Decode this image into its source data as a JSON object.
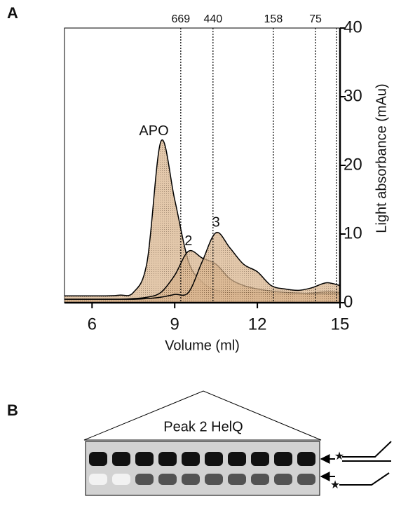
{
  "panel_labels": [
    "A",
    "B"
  ],
  "chart_data": {
    "type": "line",
    "x_label": "Volume (ml)",
    "y_label": "Light absorbance (mAu)",
    "xlim": [
      5,
      15
    ],
    "xticks": [
      6,
      9,
      12,
      15
    ],
    "ylim": [
      0,
      40
    ],
    "yticks": [
      0,
      10,
      20,
      30,
      40
    ],
    "markers": [
      {
        "x": 9.22,
        "label": "669"
      },
      {
        "x": 10.39,
        "label": "440"
      },
      {
        "x": 12.58,
        "label": "158"
      },
      {
        "x": 14.11,
        "label": "75"
      },
      {
        "x": 14.87
      }
    ],
    "x": [
      5,
      5.5,
      6,
      6.5,
      7,
      7.5,
      8,
      8.5,
      9,
      9.5,
      10,
      10.5,
      11,
      11.5,
      12,
      12.5,
      13,
      13.5,
      14,
      14.5,
      15
    ],
    "series": [
      {
        "name": "APO",
        "color": "#c8a27c",
        "values": [
          1,
          1,
          1,
          1,
          1.1,
          1.5,
          6,
          23.5,
          15,
          6,
          3,
          1.8,
          1.5,
          1.5,
          1.5,
          1.4,
          1.3,
          1.3,
          1.4,
          1.6,
          1.5
        ]
      },
      {
        "name": "2",
        "color": "#c8a27c",
        "values": [
          0.5,
          0.5,
          0.5,
          0.5,
          0.5,
          0.6,
          0.8,
          1.5,
          4,
          7.5,
          6.5,
          5.6,
          3.5,
          2.5,
          2,
          1.7,
          1.5,
          1.4,
          1.3,
          1.3,
          1.3
        ]
      },
      {
        "name": "3",
        "color": "#c8a27c",
        "values": [
          0.5,
          0.5,
          0.5,
          0.5,
          0.5,
          0.5,
          0.6,
          0.8,
          1.2,
          1.5,
          6,
          10.2,
          8,
          5.6,
          4.5,
          2.5,
          2,
          1.8,
          2.2,
          2.9,
          2.5
        ]
      }
    ]
  },
  "panel_b": {
    "title": "Peak 2 HelQ"
  }
}
